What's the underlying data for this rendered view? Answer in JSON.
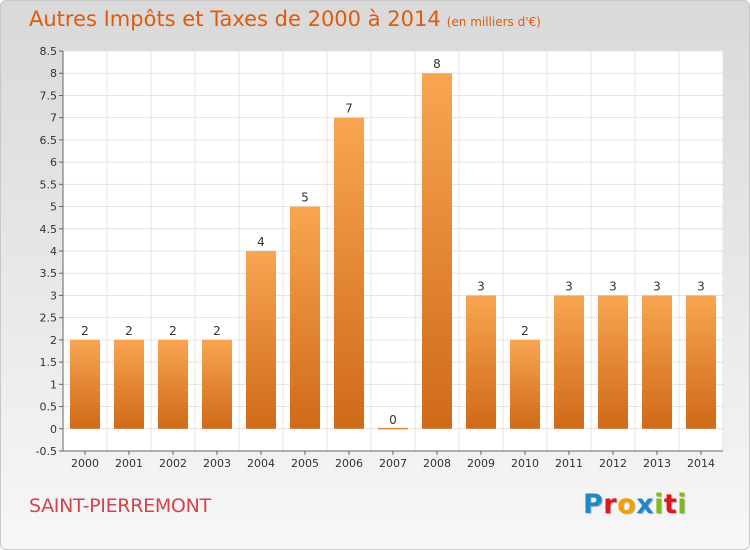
{
  "header": {
    "title": "Autres Impôts et Taxes de 2000 à 2014",
    "unit": "(en milliers d'€)"
  },
  "commune": "SAINT-PIERREMONT",
  "logo": {
    "letters": [
      {
        "ch": "P",
        "color": "#1e88c8"
      },
      {
        "ch": "r",
        "color": "#e0161e"
      },
      {
        "ch": "o",
        "color": "#f0a000"
      },
      {
        "ch": "x",
        "color": "#1e88c8"
      },
      {
        "ch": "i",
        "color": "#7cbc1c"
      },
      {
        "ch": "t",
        "color": "#e0161e"
      },
      {
        "ch": "i",
        "color": "#7cbc1c"
      }
    ]
  },
  "chart_data": {
    "type": "bar",
    "title": "Autres Impôts et Taxes de 2000 à 2014",
    "subtitle": "(en milliers d'€)",
    "xlabel": "",
    "ylabel": "",
    "ylim": [
      -0.5,
      8.5
    ],
    "yticks": [
      "8.5",
      "8",
      "7.5",
      "7",
      "6.5",
      "6",
      "5.5",
      "5",
      "4.5",
      "4",
      "3.5",
      "3",
      "2.5",
      "2",
      "1.5",
      "1",
      "0.5",
      "0",
      "-0.5"
    ],
    "grid": true,
    "categories": [
      "2000",
      "2001",
      "2002",
      "2003",
      "2004",
      "2005",
      "2006",
      "2007",
      "2008",
      "2009",
      "2010",
      "2011",
      "2012",
      "2013",
      "2014"
    ],
    "values": [
      2,
      2,
      2,
      2,
      4,
      5,
      7,
      0,
      8,
      3,
      2,
      3,
      3,
      3,
      3
    ],
    "labels": [
      "2",
      "2",
      "2",
      "2",
      "4",
      "5",
      "7",
      "0",
      "8",
      "3",
      "2",
      "3",
      "3",
      "3",
      "3"
    ],
    "bar_color": "#f2963e"
  }
}
